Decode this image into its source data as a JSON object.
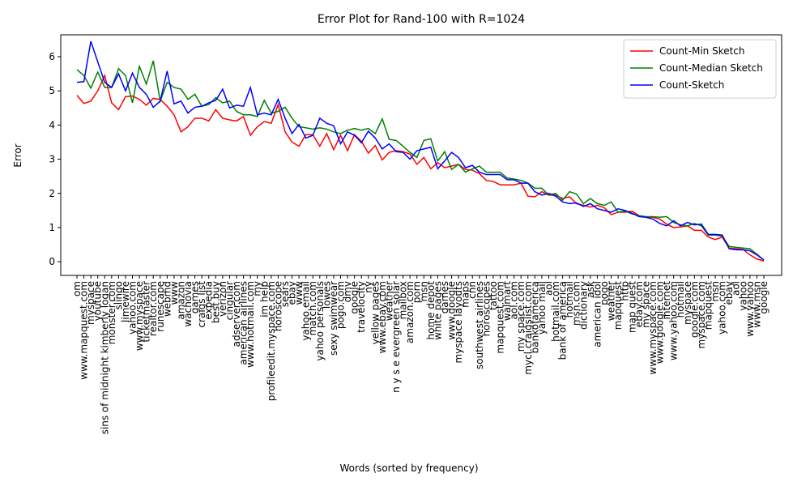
{
  "chart_data": {
    "type": "line",
    "title": "Error Plot for Rand-100 with R=1024",
    "x_label": "Words (sorted by frequency)",
    "y_label": "Error",
    "legend": "upper right",
    "ylim": [
      -0.4,
      6.64
    ],
    "yticks": [
      0,
      1,
      2,
      3,
      4,
      5,
      6
    ],
    "categories": [
      "om",
      "www.mapquest.com",
      "myspace",
      "youtube",
      "sins of midnight kimberly logan",
      "monster.com",
      "slingo",
      "limewire",
      "yahoo.com",
      "www.myspace",
      "ticketmaster",
      "realtor.com",
      "runescape",
      "webmd",
      "www",
      "amazon",
      "wachovia",
      "games",
      "craigs list",
      "expedia",
      "best buy",
      "verizon",
      "cingular",
      "adserver.com",
      "american airlines",
      "www.hotmail.com",
      "my",
      "im help",
      "profileedit.myspace.com",
      "horoscope",
      "sears",
      "ebay",
      "www",
      "yahoo email",
      "match.com",
      "yahoo personals",
      "lowes",
      "sexy swimwear",
      "pogo.com",
      "dmv",
      "google",
      "travelocity",
      "ny",
      "yellow pages",
      "www.ebay.com",
      "weather",
      "n y s e evergreen solar",
      "mailbox",
      "amazon.com",
      "porn",
      "msn",
      "home depot",
      "white pages",
      "games",
      "www.google",
      "myspace layouts",
      "maps",
      "cnn",
      "southwest airlines",
      "horoscopes",
      "tattoo",
      "mapquest.com",
      "walmart",
      "aol.com",
      "my space.com",
      "mycl.craigslist.com",
      "bankofamerica",
      "yahoo mail",
      "aol",
      "hotmail.com",
      "bank of america",
      "hotmail",
      "msn.com",
      "dictionary",
      "ask",
      "american idol",
      "pogo",
      "weather",
      "mapquest",
      "http",
      "map quest",
      "ebay.com",
      "my space",
      "www.myspace.com",
      "www.google.com",
      "internet",
      "www.yahoo.com",
      "hotmail",
      "myspace",
      "google.com",
      "myspace.com",
      "mapquest",
      "msn",
      "yahoo.com",
      "ebay",
      "aol",
      "yahoo",
      "www.yahoo",
      "www.msn",
      "google"
    ],
    "series": [
      {
        "name": "Count-Min Sketch",
        "color": "#ff0000",
        "values": [
          4.87,
          4.63,
          4.7,
          5.0,
          5.45,
          4.65,
          4.45,
          4.83,
          4.85,
          4.75,
          4.58,
          4.78,
          4.75,
          4.55,
          4.3,
          3.8,
          3.95,
          4.2,
          4.2,
          4.12,
          4.45,
          4.2,
          4.15,
          4.12,
          4.25,
          3.7,
          3.95,
          4.1,
          4.05,
          4.6,
          3.8,
          3.5,
          3.38,
          3.72,
          3.72,
          3.38,
          3.75,
          3.28,
          3.7,
          3.25,
          3.72,
          3.52,
          3.18,
          3.4,
          2.98,
          3.2,
          3.25,
          3.22,
          3.15,
          2.85,
          3.05,
          2.72,
          2.9,
          2.75,
          2.8,
          2.85,
          2.7,
          2.68,
          2.58,
          2.38,
          2.35,
          2.25,
          2.25,
          2.25,
          2.3,
          1.92,
          1.9,
          2.05,
          1.95,
          1.95,
          1.85,
          1.9,
          1.7,
          1.65,
          1.6,
          1.65,
          1.58,
          1.38,
          1.45,
          1.45,
          1.48,
          1.35,
          1.3,
          1.3,
          1.25,
          1.1,
          1.0,
          1.02,
          1.05,
          0.92,
          0.92,
          0.72,
          0.65,
          0.72,
          0.4,
          0.38,
          0.36,
          0.2,
          0.08,
          0.02
        ]
      },
      {
        "name": "Count-Median Sketch",
        "color": "#008000",
        "values": [
          5.62,
          5.45,
          5.08,
          5.55,
          5.1,
          5.1,
          5.65,
          5.45,
          4.65,
          5.72,
          5.2,
          5.88,
          4.7,
          5.25,
          5.1,
          5.05,
          4.75,
          4.9,
          4.55,
          4.6,
          4.8,
          4.65,
          4.7,
          4.4,
          4.3,
          4.3,
          4.25,
          4.72,
          4.35,
          4.4,
          4.52,
          4.2,
          3.95,
          3.92,
          3.88,
          3.92,
          3.88,
          3.8,
          3.75,
          3.85,
          3.9,
          3.85,
          3.9,
          3.75,
          4.18,
          3.58,
          3.55,
          3.38,
          3.2,
          3.05,
          3.55,
          3.6,
          2.95,
          3.22,
          2.7,
          2.85,
          2.62,
          2.72,
          2.8,
          2.62,
          2.62,
          2.62,
          2.45,
          2.42,
          2.38,
          2.3,
          2.15,
          2.15,
          1.95,
          2.0,
          1.8,
          2.05,
          1.98,
          1.7,
          1.85,
          1.7,
          1.65,
          1.75,
          1.45,
          1.48,
          1.4,
          1.35,
          1.32,
          1.32,
          1.3,
          1.32,
          1.15,
          1.08,
          1.05,
          1.12,
          1.05,
          0.78,
          0.78,
          0.75,
          0.45,
          0.42,
          0.4,
          0.38,
          0.22,
          0.05
        ]
      },
      {
        "name": "Count-Sketch",
        "color": "#0000ff",
        "values": [
          5.25,
          5.27,
          6.45,
          5.85,
          5.25,
          5.1,
          5.5,
          5.0,
          5.52,
          5.1,
          4.9,
          4.52,
          4.7,
          5.58,
          4.62,
          4.7,
          4.35,
          4.52,
          4.55,
          4.65,
          4.72,
          5.05,
          4.5,
          4.58,
          4.55,
          5.1,
          4.3,
          4.35,
          4.3,
          4.75,
          4.2,
          3.75,
          4.02,
          3.62,
          3.7,
          4.2,
          4.05,
          3.98,
          3.45,
          3.8,
          3.7,
          3.48,
          3.82,
          3.62,
          3.3,
          3.45,
          3.22,
          3.2,
          3.0,
          3.25,
          3.3,
          3.35,
          2.72,
          2.95,
          3.2,
          3.05,
          2.75,
          2.82,
          2.62,
          2.55,
          2.55,
          2.55,
          2.4,
          2.4,
          2.3,
          2.3,
          2.05,
          1.95,
          2.0,
          1.92,
          1.75,
          1.7,
          1.72,
          1.62,
          1.7,
          1.55,
          1.5,
          1.45,
          1.55,
          1.5,
          1.42,
          1.32,
          1.3,
          1.25,
          1.12,
          1.05,
          1.2,
          1.05,
          1.15,
          1.08,
          1.1,
          0.8,
          0.8,
          0.78,
          0.38,
          0.35,
          0.35,
          0.32,
          0.2,
          0.05
        ]
      }
    ]
  }
}
